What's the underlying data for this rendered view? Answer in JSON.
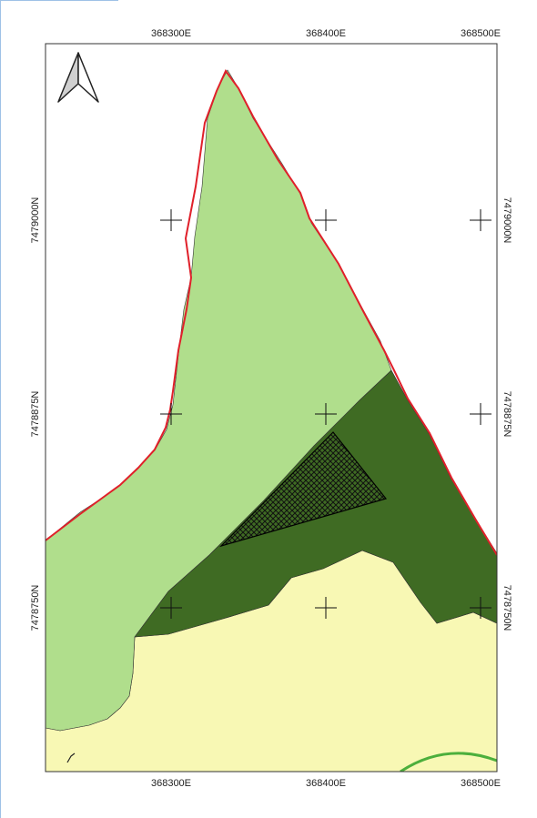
{
  "map": {
    "north_arrow": {
      "icon": "north-arrow-icon"
    },
    "grid_labels": {
      "top": [
        "368300E",
        "368400E",
        "368500E"
      ],
      "bottom": [
        "368300E",
        "368400E",
        "368500E"
      ],
      "left": [
        "7479000N",
        "7478875N",
        "7478750N"
      ],
      "right": [
        "7479000N",
        "7478875N",
        "7478750N"
      ]
    },
    "colors": {
      "light_green": "#b0de8c",
      "dark_green": "#3f6b23",
      "pale_yellow": "#f8f8b4",
      "boundary_red": "#e0202a",
      "circle_green": "#4caf3c",
      "hatch": "#1a1a1a",
      "frame_blue": "#9ec1e6"
    }
  }
}
